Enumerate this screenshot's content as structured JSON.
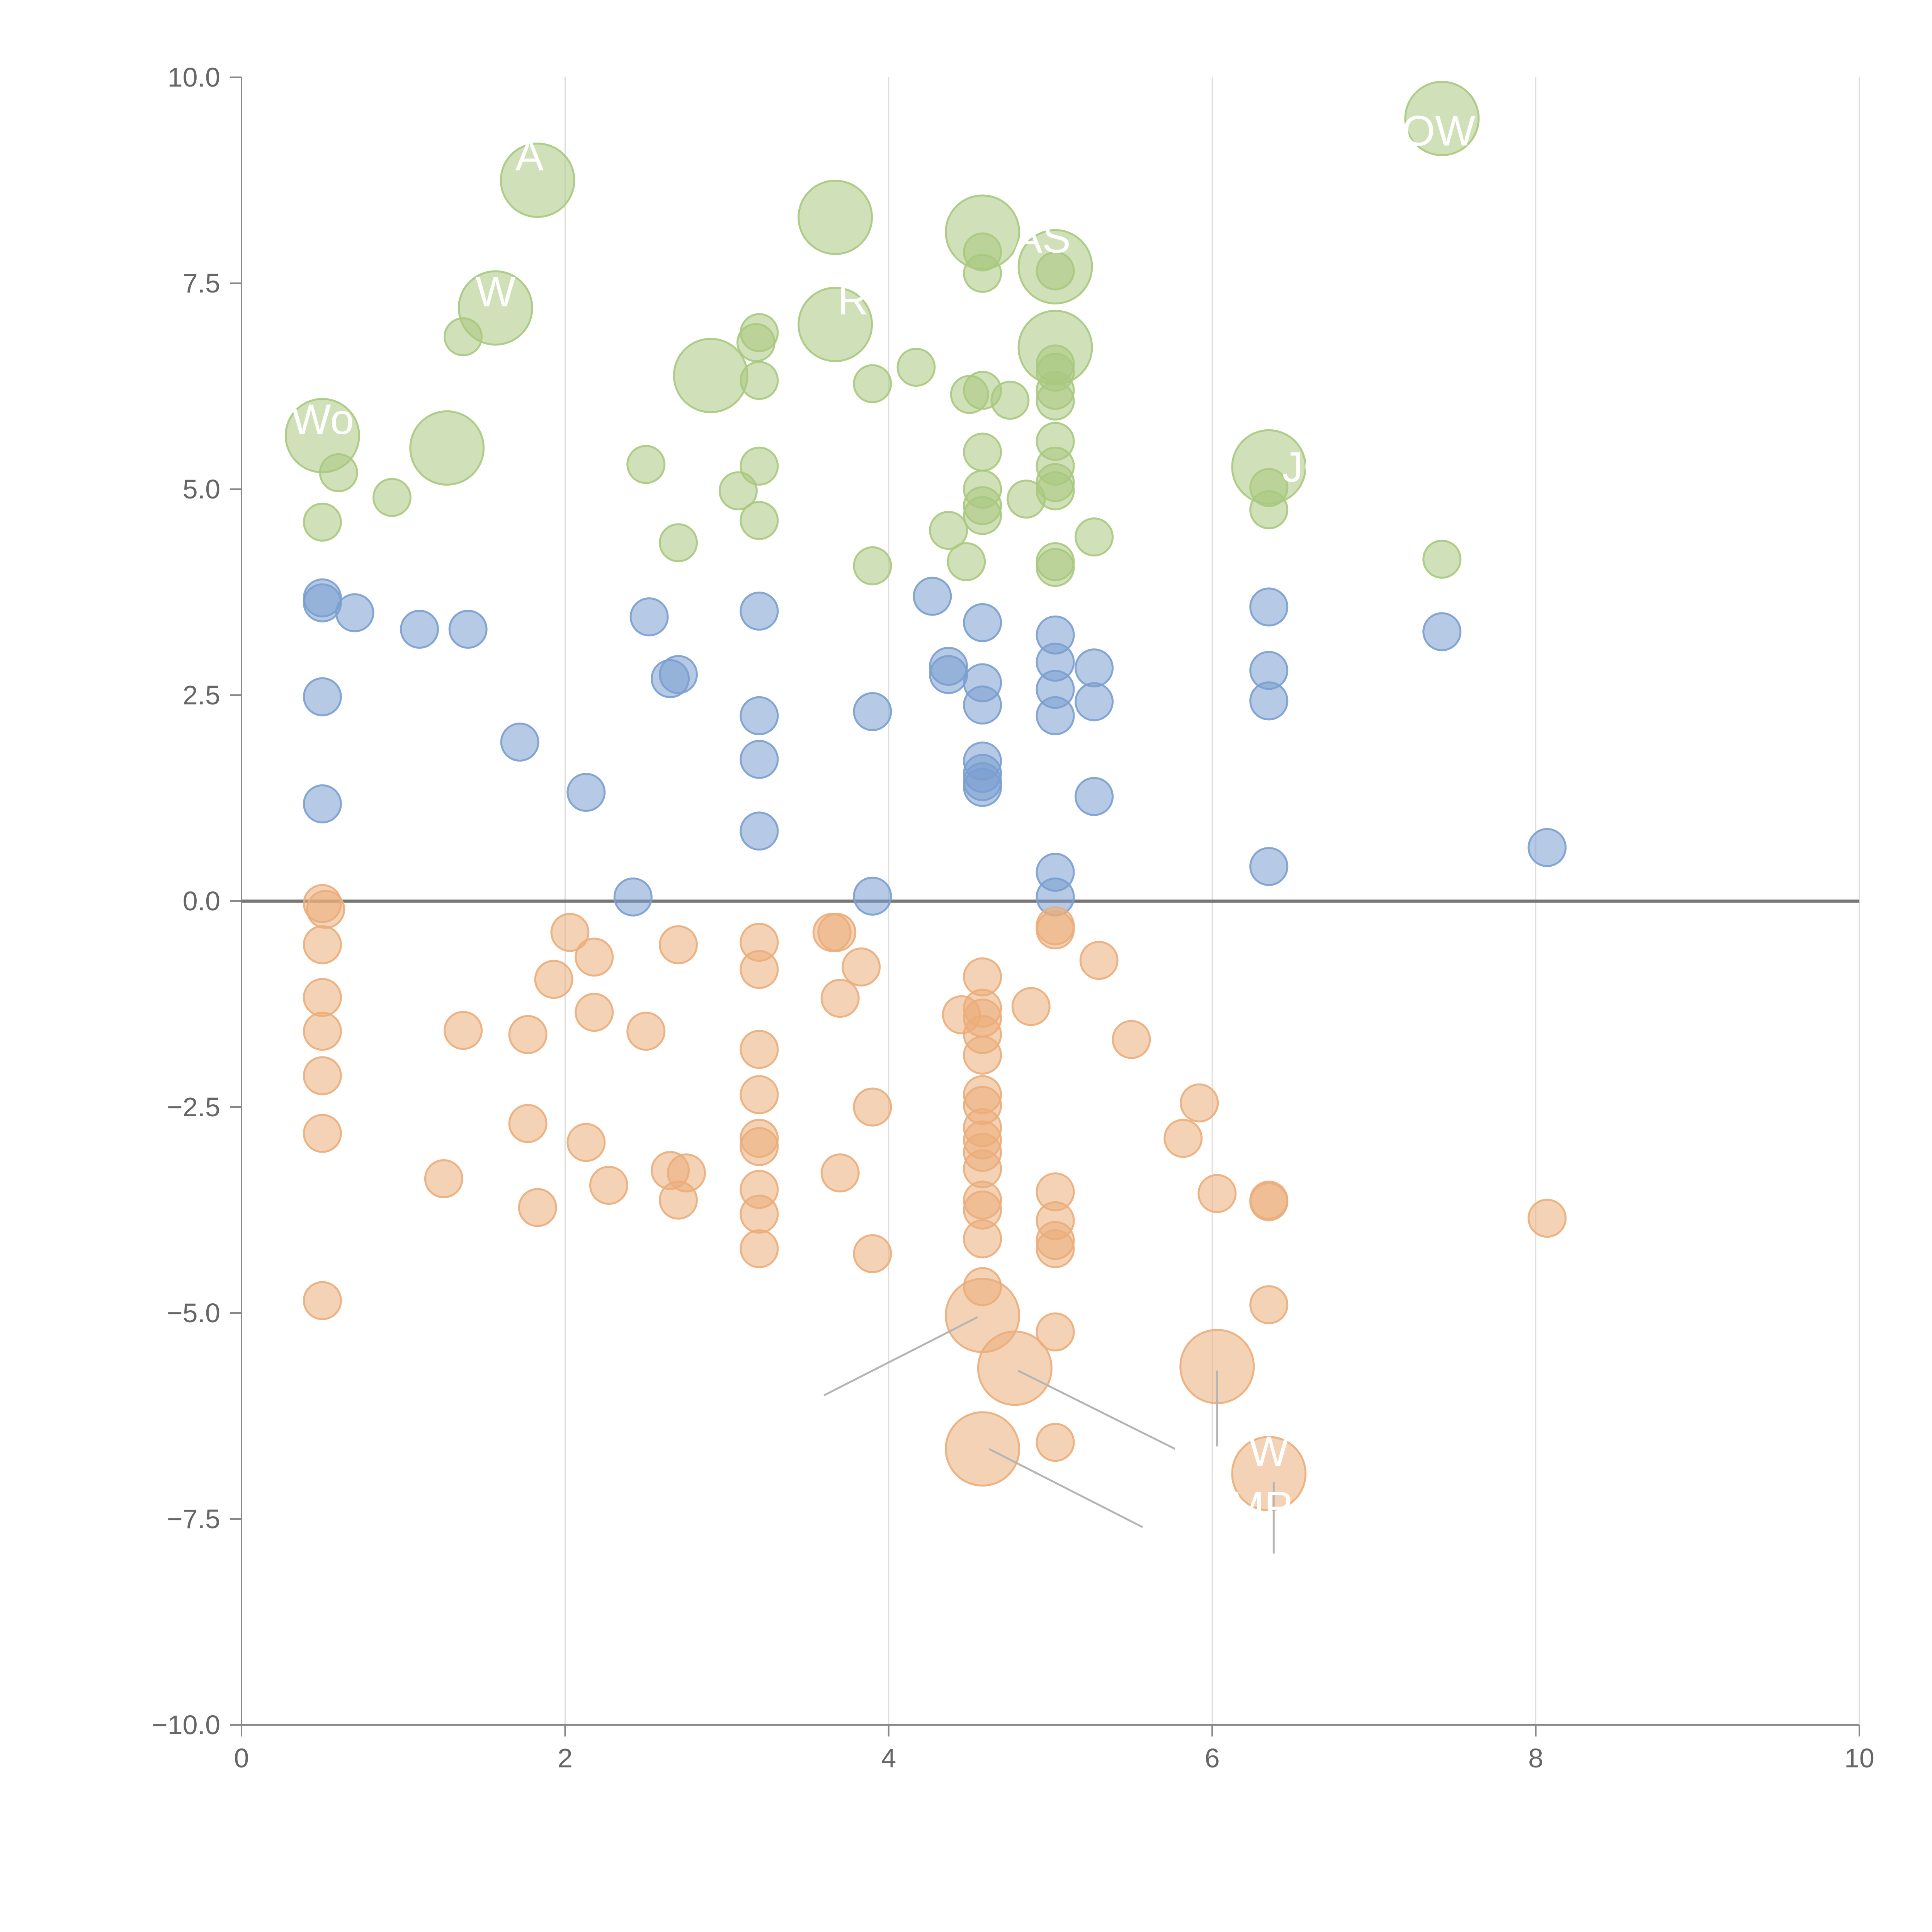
{
  "chart_data": {
    "type": "scatter",
    "title": "",
    "xlabel": "",
    "ylabel": "",
    "xlim": [
      0,
      10
    ],
    "ylim": [
      -10,
      10
    ],
    "grid": "vertical",
    "reference_line_y": 0,
    "x_ticks": [
      "0",
      "2",
      "4",
      "6",
      "8",
      "10"
    ],
    "y_ticks": [
      "10.0",
      "7.5",
      "5.0",
      "2.5",
      "0.0",
      "−2.5",
      "−5.0",
      "−7.5",
      "−10.0"
    ],
    "x_tick_values": [
      0,
      2,
      4,
      6,
      8,
      10
    ],
    "y_tick_values": [
      10,
      7.5,
      5,
      2.5,
      0,
      -2.5,
      -5,
      -7.5,
      -10
    ],
    "colors": {
      "green": "#a9c97f",
      "blue": "#7a9fd0",
      "orange": "#ebad7a",
      "grid": "#dddddd",
      "axis": "#888888",
      "zero_line": "#777777",
      "leader": "#b5b5b5"
    },
    "series": [
      {
        "name": "green",
        "color_key": "green",
        "points": [
          [
            0.5,
            5.65,
            2
          ],
          [
            0.6,
            5.2,
            1
          ],
          [
            0.5,
            4.6,
            1
          ],
          [
            0.93,
            4.9,
            1
          ],
          [
            1.27,
            5.5,
            2
          ],
          [
            1.37,
            6.85,
            1
          ],
          [
            1.57,
            7.2,
            2
          ],
          [
            1.83,
            8.75,
            2
          ],
          [
            2.5,
            5.3,
            1
          ],
          [
            2.7,
            4.35,
            1
          ],
          [
            2.9,
            6.38,
            2
          ],
          [
            3.07,
            4.98,
            1
          ],
          [
            3.2,
            6.9,
            1
          ],
          [
            3.18,
            6.78,
            1
          ],
          [
            3.2,
            6.32,
            1
          ],
          [
            3.2,
            5.28,
            1
          ],
          [
            3.2,
            4.62,
            1
          ],
          [
            3.67,
            8.3,
            2
          ],
          [
            3.67,
            7.0,
            2
          ],
          [
            3.9,
            6.28,
            1
          ],
          [
            3.9,
            4.07,
            1
          ],
          [
            4.17,
            6.48,
            1
          ],
          [
            4.37,
            4.5,
            1
          ],
          [
            4.5,
            6.15,
            1
          ],
          [
            4.48,
            4.12,
            1
          ],
          [
            4.58,
            8.12,
            2
          ],
          [
            4.58,
            7.88,
            1
          ],
          [
            4.58,
            7.62,
            1
          ],
          [
            4.58,
            6.2,
            1
          ],
          [
            4.58,
            5.45,
            1
          ],
          [
            4.58,
            5.0,
            1
          ],
          [
            4.58,
            4.8,
            1
          ],
          [
            4.58,
            4.68,
            1
          ],
          [
            4.75,
            6.08,
            1
          ],
          [
            4.85,
            4.88,
            1
          ],
          [
            5.03,
            7.7,
            2
          ],
          [
            5.03,
            7.65,
            1
          ],
          [
            5.03,
            6.72,
            2
          ],
          [
            5.03,
            6.52,
            1
          ],
          [
            5.03,
            6.42,
            1
          ],
          [
            5.03,
            6.2,
            1
          ],
          [
            5.03,
            6.07,
            1
          ],
          [
            5.03,
            5.58,
            1
          ],
          [
            5.03,
            5.28,
            1
          ],
          [
            5.03,
            5.08,
            1
          ],
          [
            5.03,
            4.98,
            1
          ],
          [
            5.03,
            4.12,
            1
          ],
          [
            5.03,
            4.05,
            1
          ],
          [
            5.27,
            4.42,
            1
          ],
          [
            6.35,
            5.27,
            2
          ],
          [
            6.35,
            5.02,
            1
          ],
          [
            6.35,
            4.75,
            1
          ],
          [
            7.42,
            9.5,
            2
          ],
          [
            7.42,
            4.15,
            1
          ]
        ]
      },
      {
        "name": "blue",
        "color_key": "blue",
        "points": [
          [
            0.5,
            3.68,
            1
          ],
          [
            0.5,
            3.62,
            1
          ],
          [
            0.5,
            2.48,
            1
          ],
          [
            0.5,
            1.18,
            1
          ],
          [
            0.7,
            3.5,
            1
          ],
          [
            1.1,
            3.3,
            1
          ],
          [
            1.4,
            3.3,
            1
          ],
          [
            1.72,
            1.93,
            1
          ],
          [
            2.13,
            1.32,
            1
          ],
          [
            2.42,
            0.05,
            1
          ],
          [
            2.52,
            3.45,
            1
          ],
          [
            2.65,
            2.7,
            1
          ],
          [
            2.7,
            2.75,
            1
          ],
          [
            3.2,
            3.52,
            1
          ],
          [
            3.2,
            2.25,
            1
          ],
          [
            3.2,
            1.72,
            1
          ],
          [
            3.2,
            0.85,
            1
          ],
          [
            3.9,
            2.3,
            1
          ],
          [
            3.9,
            0.06,
            1
          ],
          [
            4.27,
            3.7,
            1
          ],
          [
            4.37,
            2.85,
            1
          ],
          [
            4.37,
            2.75,
            1
          ],
          [
            4.58,
            3.38,
            1
          ],
          [
            4.58,
            2.65,
            1
          ],
          [
            4.58,
            2.38,
            1
          ],
          [
            4.58,
            1.7,
            1
          ],
          [
            4.58,
            1.55,
            1
          ],
          [
            4.58,
            1.45,
            1
          ],
          [
            4.58,
            1.38,
            1
          ],
          [
            5.03,
            3.23,
            1
          ],
          [
            5.03,
            2.9,
            1
          ],
          [
            5.03,
            2.57,
            1
          ],
          [
            5.03,
            2.25,
            1
          ],
          [
            5.03,
            0.35,
            1
          ],
          [
            5.03,
            0.05,
            1
          ],
          [
            5.27,
            2.83,
            1
          ],
          [
            5.27,
            2.42,
            1
          ],
          [
            5.27,
            1.27,
            1
          ],
          [
            6.35,
            3.57,
            1
          ],
          [
            6.35,
            2.8,
            1
          ],
          [
            6.35,
            2.43,
            1
          ],
          [
            6.35,
            0.42,
            1
          ],
          [
            7.42,
            3.27,
            1
          ],
          [
            8.07,
            0.65,
            1
          ]
        ]
      },
      {
        "name": "orange",
        "color_key": "orange",
        "points": [
          [
            0.5,
            -0.03,
            1
          ],
          [
            0.52,
            -0.1,
            1
          ],
          [
            0.5,
            -0.53,
            1
          ],
          [
            0.5,
            -1.17,
            1
          ],
          [
            0.5,
            -1.58,
            1
          ],
          [
            0.5,
            -2.12,
            1
          ],
          [
            0.5,
            -2.82,
            1
          ],
          [
            0.5,
            -4.85,
            1
          ],
          [
            1.25,
            -3.37,
            1
          ],
          [
            1.37,
            -1.57,
            1
          ],
          [
            1.77,
            -1.62,
            1
          ],
          [
            1.77,
            -2.7,
            1
          ],
          [
            1.83,
            -3.72,
            1
          ],
          [
            1.93,
            -0.95,
            1
          ],
          [
            2.03,
            -0.38,
            1
          ],
          [
            2.13,
            -2.93,
            1
          ],
          [
            2.18,
            -0.68,
            1
          ],
          [
            2.18,
            -1.35,
            1
          ],
          [
            2.27,
            -3.45,
            1
          ],
          [
            2.5,
            -1.58,
            1
          ],
          [
            2.65,
            -3.27,
            1
          ],
          [
            2.7,
            -0.53,
            1
          ],
          [
            2.7,
            -3.63,
            1
          ],
          [
            2.75,
            -3.3,
            1
          ],
          [
            3.2,
            -0.5,
            1
          ],
          [
            3.2,
            -0.83,
            1
          ],
          [
            3.2,
            -1.8,
            1
          ],
          [
            3.2,
            -2.35,
            1
          ],
          [
            3.2,
            -2.88,
            1
          ],
          [
            3.2,
            -2.98,
            1
          ],
          [
            3.2,
            -3.5,
            1
          ],
          [
            3.2,
            -3.8,
            1
          ],
          [
            3.2,
            -4.22,
            1
          ],
          [
            3.65,
            -0.38,
            1
          ],
          [
            3.68,
            -0.38,
            1
          ],
          [
            3.7,
            -1.18,
            1
          ],
          [
            3.7,
            -3.3,
            1
          ],
          [
            3.83,
            -0.8,
            1
          ],
          [
            3.9,
            -2.5,
            1
          ],
          [
            3.9,
            -4.28,
            1
          ],
          [
            4.45,
            -1.38,
            1
          ],
          [
            4.58,
            -0.92,
            1
          ],
          [
            4.58,
            -1.3,
            1
          ],
          [
            4.58,
            -1.42,
            1
          ],
          [
            4.58,
            -1.62,
            1
          ],
          [
            4.58,
            -1.87,
            1
          ],
          [
            4.58,
            -2.35,
            1
          ],
          [
            4.58,
            -2.48,
            1
          ],
          [
            4.58,
            -2.75,
            1
          ],
          [
            4.58,
            -2.9,
            1
          ],
          [
            4.58,
            -3.05,
            1
          ],
          [
            4.58,
            -3.25,
            1
          ],
          [
            4.58,
            -3.63,
            1
          ],
          [
            4.58,
            -3.75,
            1
          ],
          [
            4.58,
            -4.1,
            1
          ],
          [
            4.58,
            -4.68,
            1
          ],
          [
            4.58,
            -5.03,
            2
          ],
          [
            4.58,
            -6.65,
            2
          ],
          [
            4.78,
            -5.67,
            2
          ],
          [
            4.88,
            -1.28,
            1
          ],
          [
            5.03,
            -0.3,
            1
          ],
          [
            5.03,
            -0.35,
            1
          ],
          [
            5.03,
            -3.53,
            1
          ],
          [
            5.03,
            -3.88,
            1
          ],
          [
            5.03,
            -4.12,
            1
          ],
          [
            5.03,
            -4.22,
            1
          ],
          [
            5.03,
            -5.23,
            1
          ],
          [
            5.03,
            -6.57,
            1
          ],
          [
            5.3,
            -0.72,
            1
          ],
          [
            5.5,
            -1.68,
            1
          ],
          [
            5.82,
            -2.88,
            1
          ],
          [
            5.92,
            -2.45,
            1
          ],
          [
            6.03,
            -3.55,
            1
          ],
          [
            6.03,
            -5.65,
            2
          ],
          [
            6.35,
            -3.63,
            1
          ],
          [
            6.35,
            -3.65,
            1
          ],
          [
            6.35,
            -4.9,
            1
          ],
          [
            6.35,
            -6.95,
            2
          ],
          [
            8.07,
            -3.85,
            1
          ]
        ]
      }
    ],
    "leader_lines": [
      [
        4.55,
        -5.05,
        3.6,
        -6.0
      ],
      [
        4.8,
        -5.7,
        5.77,
        -6.65
      ],
      [
        6.03,
        -5.7,
        6.03,
        -6.62
      ],
      [
        4.62,
        -6.65,
        5.57,
        -7.6
      ],
      [
        6.38,
        -7.05,
        6.38,
        -7.92
      ]
    ],
    "labels": [
      {
        "text": "Wo",
        "x": 0.5,
        "y": 5.85
      },
      {
        "text": "W",
        "x": 1.57,
        "y": 7.4
      },
      {
        "text": "A",
        "x": 1.78,
        "y": 9.05
      },
      {
        "text": "AS",
        "x": 4.95,
        "y": 8.05
      },
      {
        "text": "R",
        "x": 3.78,
        "y": 7.3
      },
      {
        "text": "JO",
        "x": 6.6,
        "y": 5.27
      },
      {
        "text": "OW",
        "x": 7.4,
        "y": 9.35
      },
      {
        "text": "W",
        "x": 6.35,
        "y": -6.68
      },
      {
        "text": "MP",
        "x": 6.3,
        "y": -7.35
      }
    ]
  }
}
